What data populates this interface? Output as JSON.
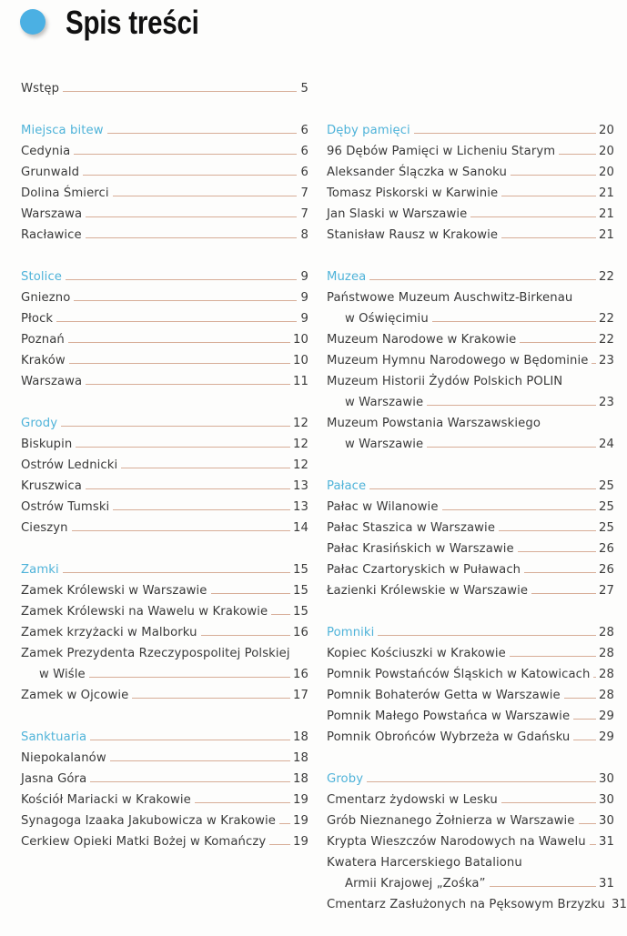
{
  "title": "Spis treści",
  "colors": {
    "accent_dot": "#4bb0e3",
    "section_heading": "#4fb3d9",
    "leader": "#d7ad97"
  },
  "columns": [
    {
      "groups": [
        {
          "entries": [
            {
              "title": "Wstęp",
              "page": "5"
            }
          ]
        },
        {
          "heading": {
            "title": "Miejsca bitew",
            "page": "6"
          },
          "entries": [
            {
              "title": "Cedynia",
              "page": "6"
            },
            {
              "title": "Grunwald",
              "page": "6"
            },
            {
              "title": "Dolina Śmierci",
              "page": "7"
            },
            {
              "title": "Warszawa",
              "page": "7"
            },
            {
              "title": "Racławice",
              "page": "8"
            }
          ]
        },
        {
          "heading": {
            "title": "Stolice",
            "page": "9"
          },
          "entries": [
            {
              "title": "Gniezno",
              "page": "9"
            },
            {
              "title": "Płock",
              "page": "9"
            },
            {
              "title": "Poznań",
              "page": "10"
            },
            {
              "title": "Kraków",
              "page": "10"
            },
            {
              "title": "Warszawa",
              "page": "11"
            }
          ]
        },
        {
          "heading": {
            "title": "Grody",
            "page": "12"
          },
          "entries": [
            {
              "title": "Biskupin",
              "page": "12"
            },
            {
              "title": "Ostrów Lednicki",
              "page": "12"
            },
            {
              "title": "Kruszwica",
              "page": "13"
            },
            {
              "title": "Ostrów Tumski",
              "page": "13"
            },
            {
              "title": "Cieszyn",
              "page": "14"
            }
          ]
        },
        {
          "heading": {
            "title": "Zamki",
            "page": "15"
          },
          "entries": [
            {
              "title": "Zamek Królewski w Warszawie",
              "page": "15"
            },
            {
              "title": "Zamek Królewski na Wawelu w Krakowie",
              "page": "15"
            },
            {
              "title": "Zamek krzyżacki w Malborku",
              "page": "16"
            },
            {
              "title": "Zamek Prezydenta Rzeczypospolitej Polskiej",
              "cont": "w Wiśle",
              "page": "16"
            },
            {
              "title": "Zamek w Ojcowie",
              "page": "17"
            }
          ]
        },
        {
          "heading": {
            "title": "Sanktuaria",
            "page": "18"
          },
          "entries": [
            {
              "title": "Niepokalanów",
              "page": "18"
            },
            {
              "title": "Jasna Góra",
              "page": "18"
            },
            {
              "title": "Kościół Mariacki w Krakowie",
              "page": "19"
            },
            {
              "title": "Synagoga Izaaka Jakubowicza w Krakowie",
              "page": "19"
            },
            {
              "title": "Cerkiew Opieki Matki Bożej w Komańczy",
              "page": "19"
            }
          ]
        }
      ]
    },
    {
      "groups": [
        {
          "heading": {
            "title": "Dęby pamięci",
            "page": "20"
          },
          "entries": [
            {
              "title": "96 Dębów Pamięci w Licheniu Starym",
              "page": "20"
            },
            {
              "title": "Aleksander Ślączka w Sanoku",
              "page": "20"
            },
            {
              "title": "Tomasz Piskorski w Karwinie",
              "page": "21"
            },
            {
              "title": "Jan Slaski w Warszawie",
              "page": "21"
            },
            {
              "title": "Stanisław Rausz w Krakowie",
              "page": "21"
            }
          ]
        },
        {
          "heading": {
            "title": "Muzea",
            "page": "22"
          },
          "entries": [
            {
              "title": "Państwowe Muzeum Auschwitz-Birkenau",
              "cont": "w Oświęcimiu",
              "page": "22"
            },
            {
              "title": "Muzeum Narodowe w Krakowie",
              "page": "22"
            },
            {
              "title": "Muzeum Hymnu Narodowego w Będominie",
              "page": "23"
            },
            {
              "title": "Muzeum Historii Żydów Polskich POLIN",
              "cont": "w Warszawie",
              "page": "23"
            },
            {
              "title": "Muzeum Powstania Warszawskiego",
              "cont": "w Warszawie",
              "page": "24"
            }
          ]
        },
        {
          "heading": {
            "title": "Pałace",
            "page": "25"
          },
          "entries": [
            {
              "title": "Pałac w Wilanowie",
              "page": "25"
            },
            {
              "title": "Pałac Staszica w Warszawie",
              "page": "25"
            },
            {
              "title": "Pałac Krasińskich w Warszawie",
              "page": "26"
            },
            {
              "title": "Pałac Czartoryskich w Puławach",
              "page": "26"
            },
            {
              "title": "Łazienki Królewskie w Warszawie",
              "page": "27"
            }
          ]
        },
        {
          "heading": {
            "title": "Pomniki",
            "page": "28"
          },
          "entries": [
            {
              "title": "Kopiec Kościuszki w Krakowie",
              "page": "28"
            },
            {
              "title": "Pomnik Powstańców Śląskich w Katowicach",
              "page": "28"
            },
            {
              "title": "Pomnik Bohaterów Getta w Warszawie",
              "page": "28"
            },
            {
              "title": "Pomnik Małego Powstańca w Warszawie",
              "page": "29"
            },
            {
              "title": "Pomnik Obrońców Wybrzeża w Gdańsku",
              "page": "29"
            }
          ]
        },
        {
          "heading": {
            "title": "Groby",
            "page": "30"
          },
          "entries": [
            {
              "title": "Cmentarz żydowski w Lesku",
              "page": "30"
            },
            {
              "title": "Grób Nieznanego Żołnierza w Warszawie",
              "page": "30"
            },
            {
              "title": "Krypta Wieszczów Narodowych na Wawelu",
              "page": "31"
            },
            {
              "title": "Kwatera Harcerskiego Batalionu",
              "cont": "Armii Krajowej „Zośka”",
              "page": "31"
            },
            {
              "title": "Cmentarz Zasłużonych na Pęksowym Brzyzku",
              "page": "31"
            }
          ]
        }
      ]
    }
  ]
}
